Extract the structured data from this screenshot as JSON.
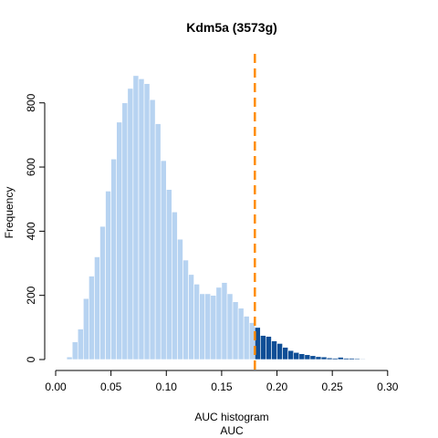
{
  "chart_data": {
    "type": "bar",
    "title": "Kdm5a (3573g)",
    "xlabel_line1": "AUC histogram",
    "xlabel_line2": "AUC",
    "ylabel": "Frequency",
    "xlim": [
      0.0,
      0.315
    ],
    "ylim": [
      0,
      950
    ],
    "x_ticks": [
      "0.00",
      "0.05",
      "0.10",
      "0.15",
      "0.20",
      "0.25",
      "0.30"
    ],
    "y_ticks": [
      "0",
      "200",
      "400",
      "600",
      "800"
    ],
    "threshold": 0.18,
    "bin_width": 0.005,
    "bins_start": 0.01,
    "values": [
      8,
      55,
      95,
      190,
      260,
      320,
      415,
      525,
      625,
      740,
      800,
      845,
      885,
      875,
      860,
      810,
      735,
      620,
      530,
      460,
      375,
      310,
      265,
      235,
      205,
      205,
      200,
      225,
      240,
      205,
      180,
      160,
      135,
      115,
      100,
      75,
      72,
      58,
      50,
      38,
      28,
      22,
      18,
      15,
      12,
      9,
      8,
      5,
      4,
      7,
      4,
      4,
      3,
      2,
      1,
      1,
      1,
      1,
      0,
      1,
      0
    ],
    "colors": {
      "below_threshold": "#b7d3f1",
      "above_threshold": "#0e4e96",
      "threshold_line": "#ff8c00",
      "bar_edge": "#ffffff",
      "axis": "#000000"
    }
  }
}
